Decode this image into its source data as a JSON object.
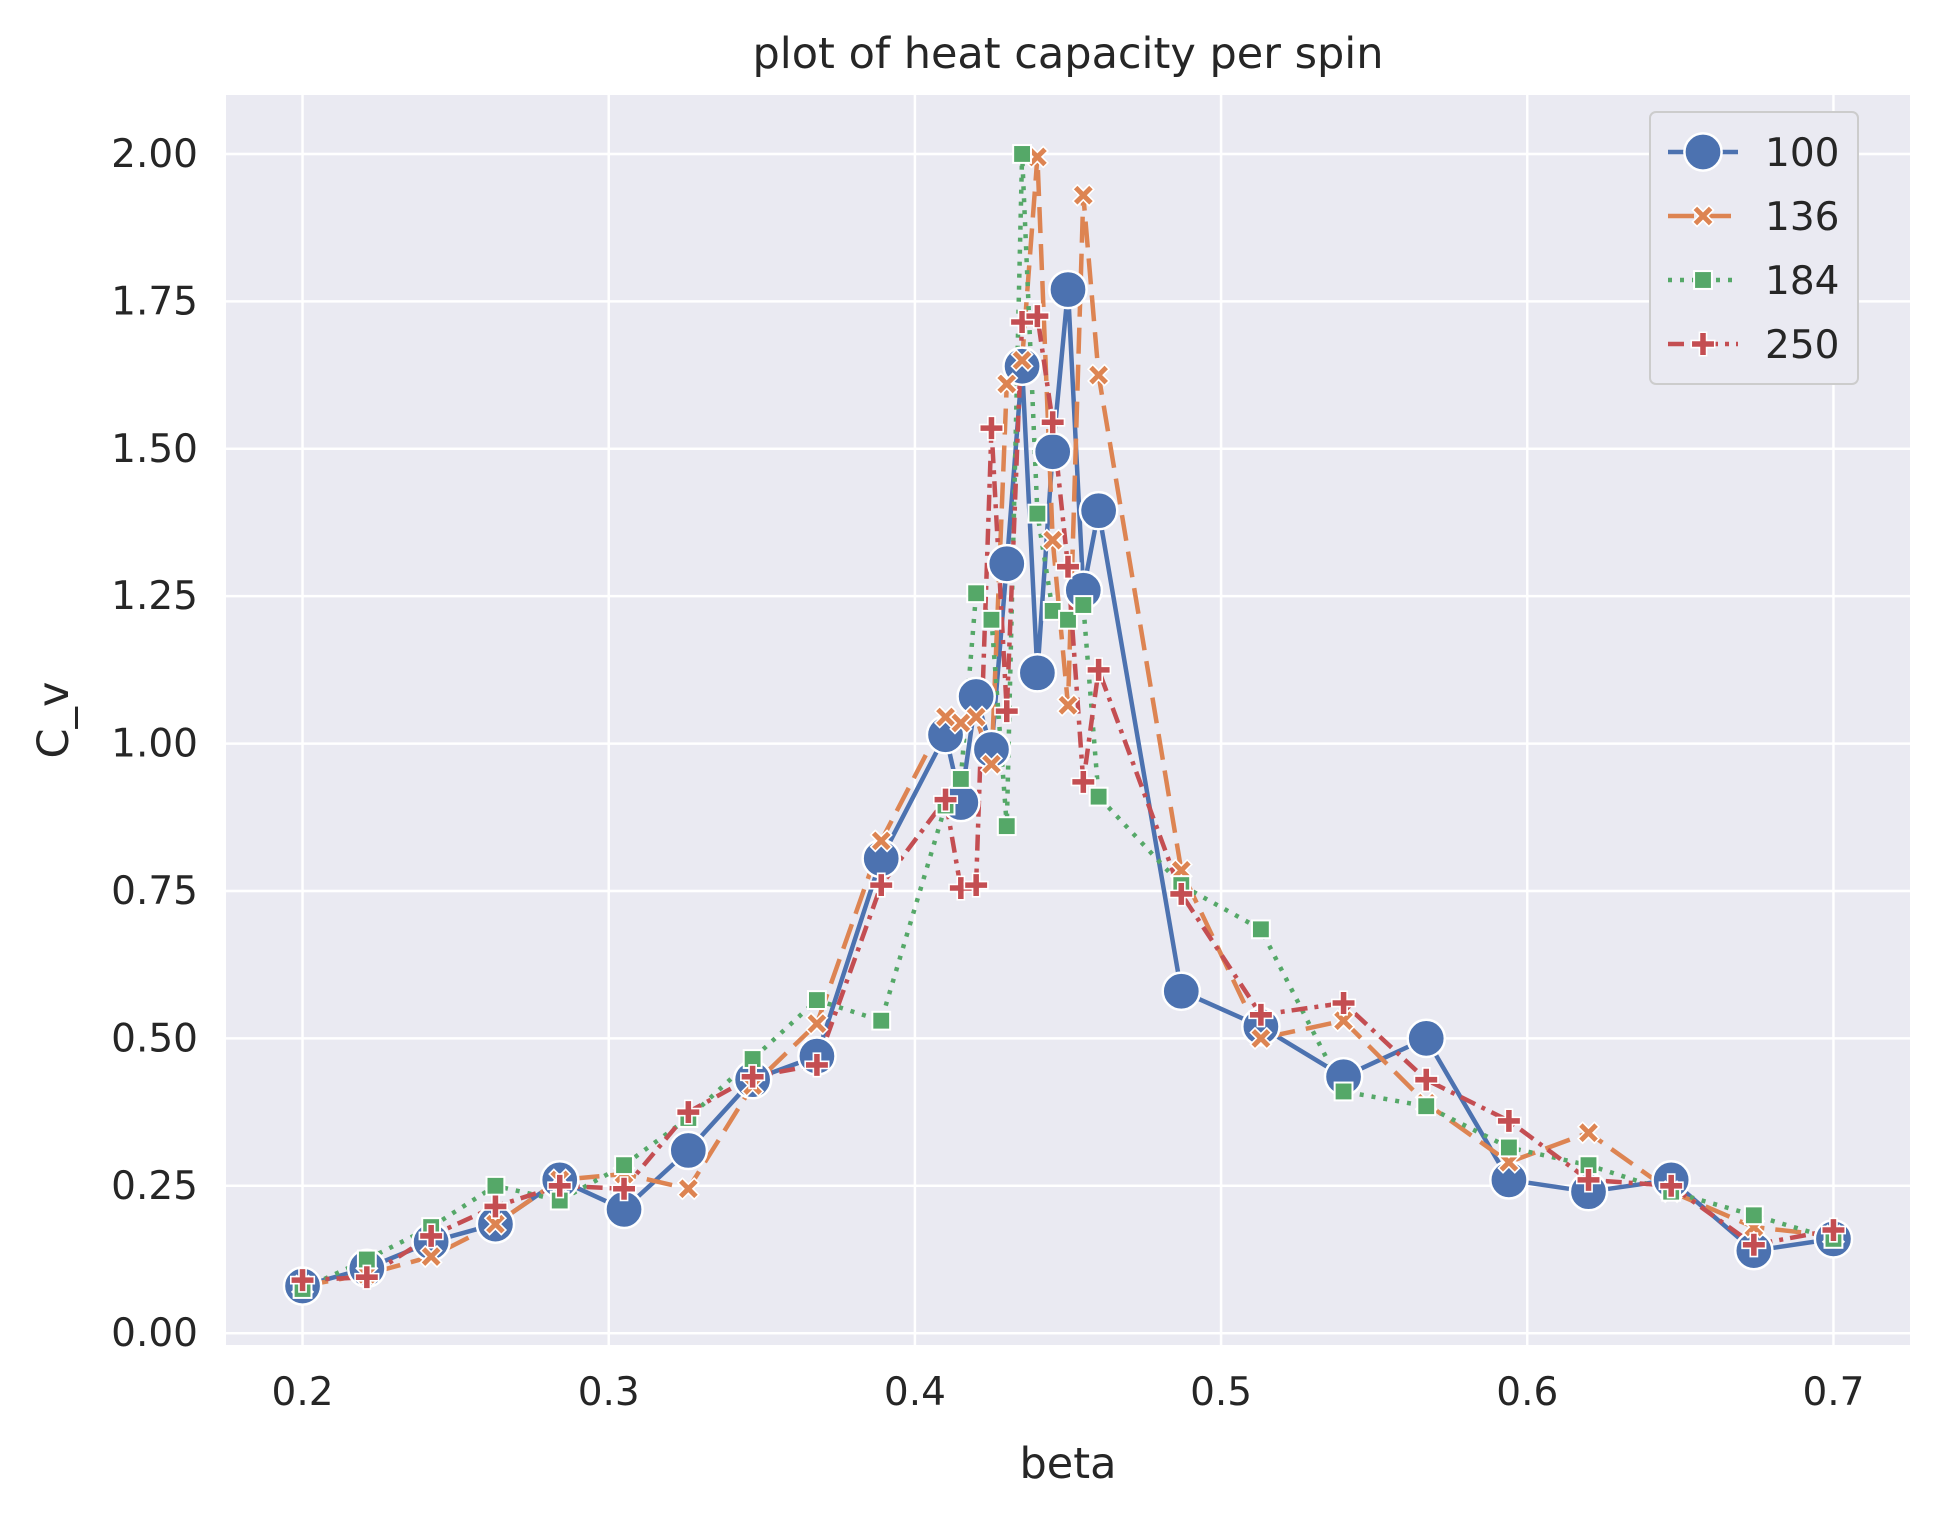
{
  "chart_data": {
    "type": "line",
    "title": "plot of heat capacity per spin",
    "xlabel": "beta",
    "ylabel": "C_v",
    "xlim": [
      0.175,
      0.725
    ],
    "ylim": [
      -0.02,
      2.1
    ],
    "xticks": [
      "0.2",
      "0.3",
      "0.4",
      "0.5",
      "0.6",
      "0.7"
    ],
    "yticks": [
      "0.00",
      "0.25",
      "0.50",
      "0.75",
      "1.00",
      "1.25",
      "1.50",
      "1.75",
      "2.00"
    ],
    "grid": true,
    "legend_position": "top-right",
    "series": [
      {
        "name": "100",
        "color": "#4c72b0",
        "dash": "solid",
        "marker": "circle",
        "x": [
          0.2,
          0.221,
          0.242,
          0.263,
          0.284,
          0.305,
          0.326,
          0.347,
          0.368,
          0.389,
          0.41,
          0.415,
          0.42,
          0.425,
          0.43,
          0.435,
          0.44,
          0.445,
          0.45,
          0.455,
          0.46,
          0.487,
          0.513,
          0.54,
          0.567,
          0.594,
          0.62,
          0.647,
          0.674,
          0.7
        ],
        "y": [
          0.08,
          0.11,
          0.155,
          0.185,
          0.26,
          0.21,
          0.31,
          0.43,
          0.47,
          0.805,
          1.015,
          0.9,
          1.08,
          0.99,
          1.305,
          1.64,
          1.12,
          1.495,
          1.77,
          1.26,
          1.395,
          0.58,
          0.52,
          0.435,
          0.5,
          0.26,
          0.24,
          0.26,
          0.14,
          0.16
        ]
      },
      {
        "name": "136",
        "color": "#dd8452",
        "dash": "dashed",
        "marker": "x",
        "x": [
          0.2,
          0.221,
          0.242,
          0.263,
          0.284,
          0.305,
          0.326,
          0.347,
          0.368,
          0.389,
          0.41,
          0.415,
          0.42,
          0.425,
          0.43,
          0.435,
          0.44,
          0.445,
          0.45,
          0.455,
          0.46,
          0.487,
          0.513,
          0.54,
          0.567,
          0.594,
          0.62,
          0.647,
          0.674,
          0.7
        ],
        "y": [
          0.08,
          0.1,
          0.13,
          0.185,
          0.26,
          0.27,
          0.245,
          0.42,
          0.525,
          0.835,
          1.045,
          1.035,
          1.045,
          0.965,
          1.61,
          1.65,
          1.995,
          1.345,
          1.065,
          1.93,
          1.625,
          0.785,
          0.5,
          0.53,
          0.39,
          0.29,
          0.34,
          0.24,
          0.18,
          0.165
        ]
      },
      {
        "name": "184",
        "color": "#55a868",
        "dash": "dotted",
        "marker": "square",
        "x": [
          0.2,
          0.221,
          0.242,
          0.263,
          0.284,
          0.305,
          0.326,
          0.347,
          0.368,
          0.389,
          0.41,
          0.415,
          0.42,
          0.425,
          0.43,
          0.435,
          0.44,
          0.445,
          0.45,
          0.455,
          0.46,
          0.487,
          0.513,
          0.54,
          0.567,
          0.594,
          0.62,
          0.647,
          0.674,
          0.7
        ],
        "y": [
          0.075,
          0.125,
          0.18,
          0.25,
          0.225,
          0.285,
          0.365,
          0.465,
          0.565,
          0.53,
          0.895,
          0.94,
          1.255,
          1.21,
          0.86,
          2.0,
          1.39,
          1.225,
          1.21,
          1.235,
          0.91,
          0.76,
          0.685,
          0.41,
          0.385,
          0.315,
          0.285,
          0.24,
          0.2,
          0.16
        ]
      },
      {
        "name": "250",
        "color": "#c44e52",
        "dash": "dashdot",
        "marker": "plus",
        "x": [
          0.2,
          0.221,
          0.242,
          0.263,
          0.284,
          0.305,
          0.326,
          0.347,
          0.368,
          0.389,
          0.41,
          0.415,
          0.42,
          0.425,
          0.43,
          0.435,
          0.44,
          0.445,
          0.45,
          0.455,
          0.46,
          0.487,
          0.513,
          0.54,
          0.567,
          0.594,
          0.62,
          0.647,
          0.674,
          0.7
        ],
        "y": [
          0.09,
          0.095,
          0.165,
          0.215,
          0.25,
          0.245,
          0.375,
          0.435,
          0.455,
          0.76,
          0.905,
          0.755,
          0.76,
          1.535,
          1.055,
          1.715,
          1.725,
          1.545,
          1.3,
          0.935,
          1.125,
          0.745,
          0.54,
          0.56,
          0.43,
          0.36,
          0.26,
          0.25,
          0.15,
          0.175
        ]
      }
    ]
  }
}
